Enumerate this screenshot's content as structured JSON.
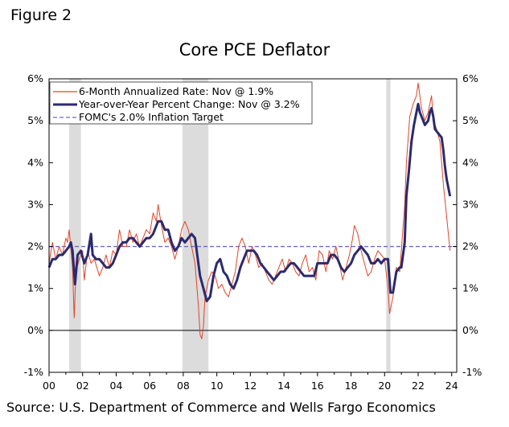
{
  "figure_label": "Figure 2",
  "source": "Source: U.S. Department of Commerce and Wells Fargo Economics",
  "colors": {
    "six_month": "#e0452a",
    "yoy": "#2b2a6e",
    "target": "#6b6cc8",
    "recession": "#dcdcdc"
  },
  "chart_data": {
    "type": "line",
    "title": "Core PCE Deflator",
    "xlabel": "",
    "ylabel": "",
    "xlim": [
      2000,
      2024.3
    ],
    "ylim": [
      -1,
      6
    ],
    "y_ticks_left": [
      "6%",
      "5%",
      "4%",
      "3%",
      "2%",
      "1%",
      "0%",
      "-1%"
    ],
    "y_ticks_right": [
      "6%",
      "5%",
      "4%",
      "3%",
      "2%",
      "1%",
      "0%",
      "-1%"
    ],
    "x_ticks": [
      "00",
      "02",
      "04",
      "06",
      "08",
      "10",
      "12",
      "14",
      "16",
      "18",
      "20",
      "22",
      "24"
    ],
    "x_tick_values": [
      2000,
      2002,
      2004,
      2006,
      2008,
      2010,
      2012,
      2014,
      2016,
      2018,
      2020,
      2022,
      2024
    ],
    "recessions": [
      [
        2001.2,
        2001.9
      ],
      [
        2007.95,
        2009.5
      ],
      [
        2020.1,
        2020.35
      ]
    ],
    "series": [
      {
        "name": "6-Month Annualized Rate: Nov @ 1.9%",
        "style": "thin",
        "points": [
          [
            2000.0,
            1.6
          ],
          [
            2000.2,
            2.1
          ],
          [
            2000.4,
            1.7
          ],
          [
            2000.6,
            2.0
          ],
          [
            2000.8,
            1.8
          ],
          [
            2001.0,
            2.2
          ],
          [
            2001.1,
            2.1
          ],
          [
            2001.2,
            2.4
          ],
          [
            2001.4,
            1.5
          ],
          [
            2001.5,
            0.3
          ],
          [
            2001.6,
            1.4
          ],
          [
            2001.8,
            1.7
          ],
          [
            2002.0,
            1.9
          ],
          [
            2002.1,
            1.2
          ],
          [
            2002.3,
            1.9
          ],
          [
            2002.5,
            1.6
          ],
          [
            2002.7,
            1.7
          ],
          [
            2003.0,
            1.3
          ],
          [
            2003.2,
            1.5
          ],
          [
            2003.4,
            1.8
          ],
          [
            2003.6,
            1.5
          ],
          [
            2003.8,
            1.9
          ],
          [
            2004.0,
            1.8
          ],
          [
            2004.2,
            2.4
          ],
          [
            2004.4,
            2.0
          ],
          [
            2004.6,
            2.0
          ],
          [
            2004.8,
            2.4
          ],
          [
            2005.0,
            2.1
          ],
          [
            2005.2,
            2.3
          ],
          [
            2005.4,
            2.0
          ],
          [
            2005.6,
            2.2
          ],
          [
            2005.8,
            2.4
          ],
          [
            2006.0,
            2.3
          ],
          [
            2006.2,
            2.8
          ],
          [
            2006.4,
            2.6
          ],
          [
            2006.5,
            3.0
          ],
          [
            2006.7,
            2.5
          ],
          [
            2006.9,
            2.1
          ],
          [
            2007.1,
            2.2
          ],
          [
            2007.3,
            2.0
          ],
          [
            2007.5,
            1.7
          ],
          [
            2007.7,
            2.0
          ],
          [
            2007.9,
            2.4
          ],
          [
            2008.1,
            2.6
          ],
          [
            2008.3,
            2.4
          ],
          [
            2008.5,
            2.0
          ],
          [
            2008.7,
            1.6
          ],
          [
            2008.9,
            0.6
          ],
          [
            2009.0,
            -0.1
          ],
          [
            2009.1,
            -0.2
          ],
          [
            2009.2,
            0.1
          ],
          [
            2009.3,
            0.8
          ],
          [
            2009.5,
            1.2
          ],
          [
            2009.7,
            1.4
          ],
          [
            2009.9,
            1.3
          ],
          [
            2010.1,
            1.0
          ],
          [
            2010.3,
            1.1
          ],
          [
            2010.5,
            0.9
          ],
          [
            2010.7,
            0.8
          ],
          [
            2010.9,
            1.1
          ],
          [
            2011.1,
            1.4
          ],
          [
            2011.3,
            2.0
          ],
          [
            2011.5,
            2.2
          ],
          [
            2011.7,
            2.0
          ],
          [
            2011.9,
            1.6
          ],
          [
            2012.1,
            2.0
          ],
          [
            2012.3,
            1.8
          ],
          [
            2012.5,
            1.5
          ],
          [
            2012.7,
            1.6
          ],
          [
            2012.9,
            1.4
          ],
          [
            2013.1,
            1.2
          ],
          [
            2013.3,
            1.1
          ],
          [
            2013.5,
            1.3
          ],
          [
            2013.7,
            1.5
          ],
          [
            2013.9,
            1.7
          ],
          [
            2014.1,
            1.4
          ],
          [
            2014.3,
            1.7
          ],
          [
            2014.5,
            1.6
          ],
          [
            2014.7,
            1.4
          ],
          [
            2014.9,
            1.3
          ],
          [
            2015.1,
            1.6
          ],
          [
            2015.3,
            1.8
          ],
          [
            2015.5,
            1.4
          ],
          [
            2015.7,
            1.5
          ],
          [
            2015.9,
            1.2
          ],
          [
            2016.1,
            1.9
          ],
          [
            2016.3,
            1.8
          ],
          [
            2016.5,
            1.4
          ],
          [
            2016.7,
            1.9
          ],
          [
            2016.9,
            1.7
          ],
          [
            2017.1,
            2.0
          ],
          [
            2017.3,
            1.6
          ],
          [
            2017.5,
            1.2
          ],
          [
            2017.7,
            1.5
          ],
          [
            2017.9,
            1.8
          ],
          [
            2018.1,
            2.2
          ],
          [
            2018.2,
            2.5
          ],
          [
            2018.4,
            2.3
          ],
          [
            2018.6,
            1.9
          ],
          [
            2018.8,
            1.6
          ],
          [
            2019.0,
            1.3
          ],
          [
            2019.2,
            1.4
          ],
          [
            2019.4,
            1.7
          ],
          [
            2019.6,
            1.9
          ],
          [
            2019.8,
            1.8
          ],
          [
            2020.0,
            1.7
          ],
          [
            2020.2,
            1.0
          ],
          [
            2020.3,
            0.4
          ],
          [
            2020.5,
            0.8
          ],
          [
            2020.7,
            1.5
          ],
          [
            2020.9,
            1.4
          ],
          [
            2021.0,
            1.9
          ],
          [
            2021.2,
            3.0
          ],
          [
            2021.3,
            4.0
          ],
          [
            2021.5,
            5.1
          ],
          [
            2021.7,
            5.4
          ],
          [
            2021.9,
            5.6
          ],
          [
            2022.0,
            5.9
          ],
          [
            2022.2,
            5.3
          ],
          [
            2022.4,
            5.0
          ],
          [
            2022.6,
            5.2
          ],
          [
            2022.8,
            5.6
          ],
          [
            2022.9,
            5.0
          ],
          [
            2023.1,
            4.8
          ],
          [
            2023.3,
            4.5
          ],
          [
            2023.5,
            3.5
          ],
          [
            2023.7,
            2.7
          ],
          [
            2023.8,
            2.3
          ],
          [
            2023.9,
            1.9
          ]
        ]
      },
      {
        "name": "Year-over-Year Percent Change: Nov @ 3.2%",
        "style": "thick",
        "points": [
          [
            2000.0,
            1.5
          ],
          [
            2000.2,
            1.7
          ],
          [
            2000.4,
            1.7
          ],
          [
            2000.6,
            1.8
          ],
          [
            2000.8,
            1.8
          ],
          [
            2001.0,
            1.9
          ],
          [
            2001.2,
            2.0
          ],
          [
            2001.3,
            2.1
          ],
          [
            2001.4,
            1.9
          ],
          [
            2001.55,
            1.1
          ],
          [
            2001.7,
            1.8
          ],
          [
            2001.9,
            1.9
          ],
          [
            2002.1,
            1.6
          ],
          [
            2002.3,
            1.8
          ],
          [
            2002.5,
            2.3
          ],
          [
            2002.6,
            1.8
          ],
          [
            2002.8,
            1.7
          ],
          [
            2003.0,
            1.7
          ],
          [
            2003.2,
            1.6
          ],
          [
            2003.4,
            1.5
          ],
          [
            2003.6,
            1.5
          ],
          [
            2003.8,
            1.6
          ],
          [
            2004.0,
            1.8
          ],
          [
            2004.2,
            2.0
          ],
          [
            2004.4,
            2.1
          ],
          [
            2004.6,
            2.1
          ],
          [
            2004.8,
            2.2
          ],
          [
            2005.0,
            2.2
          ],
          [
            2005.2,
            2.1
          ],
          [
            2005.4,
            2.0
          ],
          [
            2005.6,
            2.1
          ],
          [
            2005.8,
            2.2
          ],
          [
            2006.0,
            2.2
          ],
          [
            2006.2,
            2.3
          ],
          [
            2006.4,
            2.5
          ],
          [
            2006.5,
            2.6
          ],
          [
            2006.7,
            2.6
          ],
          [
            2006.9,
            2.4
          ],
          [
            2007.1,
            2.4
          ],
          [
            2007.3,
            2.1
          ],
          [
            2007.5,
            1.9
          ],
          [
            2007.7,
            2.0
          ],
          [
            2007.9,
            2.2
          ],
          [
            2008.1,
            2.1
          ],
          [
            2008.3,
            2.2
          ],
          [
            2008.5,
            2.3
          ],
          [
            2008.7,
            2.2
          ],
          [
            2008.9,
            1.6
          ],
          [
            2009.0,
            1.3
          ],
          [
            2009.2,
            1.0
          ],
          [
            2009.4,
            0.7
          ],
          [
            2009.6,
            0.8
          ],
          [
            2009.8,
            1.3
          ],
          [
            2010.0,
            1.6
          ],
          [
            2010.2,
            1.7
          ],
          [
            2010.4,
            1.4
          ],
          [
            2010.6,
            1.3
          ],
          [
            2010.8,
            1.1
          ],
          [
            2011.0,
            1.0
          ],
          [
            2011.2,
            1.2
          ],
          [
            2011.4,
            1.5
          ],
          [
            2011.6,
            1.7
          ],
          [
            2011.8,
            1.9
          ],
          [
            2012.0,
            1.9
          ],
          [
            2012.2,
            1.9
          ],
          [
            2012.4,
            1.8
          ],
          [
            2012.6,
            1.6
          ],
          [
            2012.8,
            1.5
          ],
          [
            2013.0,
            1.4
          ],
          [
            2013.2,
            1.3
          ],
          [
            2013.4,
            1.2
          ],
          [
            2013.6,
            1.3
          ],
          [
            2013.8,
            1.4
          ],
          [
            2014.0,
            1.4
          ],
          [
            2014.2,
            1.5
          ],
          [
            2014.4,
            1.6
          ],
          [
            2014.6,
            1.6
          ],
          [
            2014.8,
            1.5
          ],
          [
            2015.0,
            1.4
          ],
          [
            2015.2,
            1.3
          ],
          [
            2015.4,
            1.3
          ],
          [
            2015.6,
            1.3
          ],
          [
            2015.8,
            1.3
          ],
          [
            2016.0,
            1.6
          ],
          [
            2016.2,
            1.6
          ],
          [
            2016.4,
            1.6
          ],
          [
            2016.6,
            1.6
          ],
          [
            2016.8,
            1.8
          ],
          [
            2017.0,
            1.8
          ],
          [
            2017.2,
            1.7
          ],
          [
            2017.4,
            1.5
          ],
          [
            2017.6,
            1.4
          ],
          [
            2017.8,
            1.5
          ],
          [
            2018.0,
            1.6
          ],
          [
            2018.2,
            1.8
          ],
          [
            2018.4,
            1.9
          ],
          [
            2018.6,
            2.0
          ],
          [
            2018.8,
            1.9
          ],
          [
            2019.0,
            1.8
          ],
          [
            2019.2,
            1.6
          ],
          [
            2019.4,
            1.6
          ],
          [
            2019.6,
            1.7
          ],
          [
            2019.8,
            1.6
          ],
          [
            2020.0,
            1.7
          ],
          [
            2020.2,
            1.7
          ],
          [
            2020.35,
            0.9
          ],
          [
            2020.5,
            0.9
          ],
          [
            2020.7,
            1.4
          ],
          [
            2020.9,
            1.5
          ],
          [
            2021.0,
            1.5
          ],
          [
            2021.2,
            2.1
          ],
          [
            2021.3,
            3.2
          ],
          [
            2021.45,
            3.8
          ],
          [
            2021.6,
            4.5
          ],
          [
            2021.75,
            4.9
          ],
          [
            2021.9,
            5.2
          ],
          [
            2022.0,
            5.4
          ],
          [
            2022.1,
            5.2
          ],
          [
            2022.3,
            5.0
          ],
          [
            2022.4,
            4.9
          ],
          [
            2022.6,
            5.0
          ],
          [
            2022.7,
            5.2
          ],
          [
            2022.8,
            5.3
          ],
          [
            2022.9,
            5.1
          ],
          [
            2023.0,
            4.8
          ],
          [
            2023.2,
            4.7
          ],
          [
            2023.4,
            4.6
          ],
          [
            2023.5,
            4.3
          ],
          [
            2023.6,
            3.9
          ],
          [
            2023.7,
            3.6
          ],
          [
            2023.9,
            3.2
          ]
        ]
      }
    ],
    "reference_lines": [
      {
        "name": "FOMC's 2.0% Inflation Target",
        "value": 2.0
      }
    ]
  }
}
